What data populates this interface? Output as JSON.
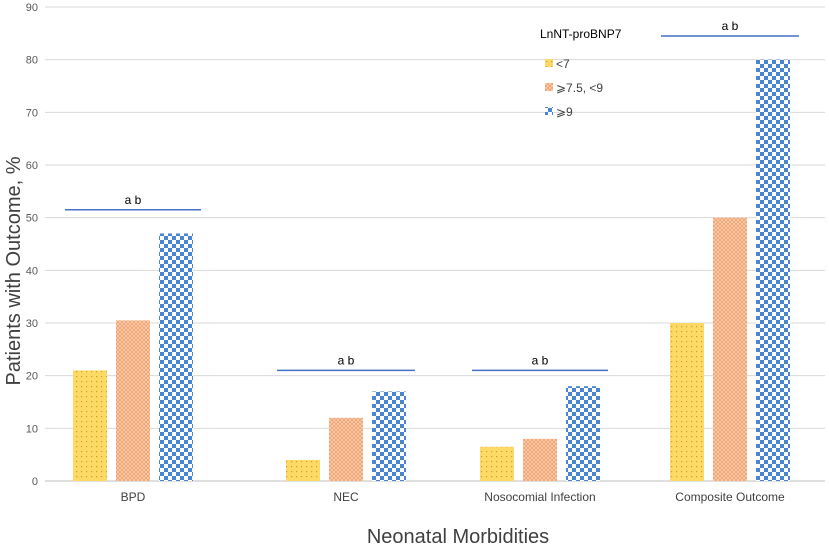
{
  "chart_data": {
    "type": "bar",
    "title": "",
    "xlabel": "Neonatal Morbidities",
    "ylabel": "Patients with Outcome, %",
    "ylim": [
      0,
      90
    ],
    "yticks": [
      0,
      10,
      20,
      30,
      40,
      50,
      60,
      70,
      80,
      90
    ],
    "grid": true,
    "legend_title": "LnNT-proBNP7",
    "legend_position": "top-right",
    "categories": [
      "BPD",
      "NEC",
      "Nosocomial Infection",
      "Composite Outcome"
    ],
    "series": [
      {
        "name": "<7",
        "values": [
          21,
          4,
          6.5,
          30
        ],
        "color": "#FFD966",
        "pattern": "dots"
      },
      {
        "name": "⩾7.5, <9",
        "values": [
          30.5,
          12,
          8,
          50
        ],
        "color": "#F4B183",
        "pattern": "crosshatch"
      },
      {
        "name": "⩾9",
        "values": [
          47,
          17,
          18,
          80
        ],
        "color": "#4A86D0",
        "pattern": "checker"
      }
    ],
    "significance": [
      {
        "category": "BPD",
        "y": 51.5,
        "label": "a b"
      },
      {
        "category": "NEC",
        "y": 21,
        "label": "a b"
      },
      {
        "category": "Nosocomial Infection",
        "y": 21,
        "label": "a b"
      },
      {
        "category": "Composite Outcome",
        "y": 84.5,
        "label": "a b"
      }
    ],
    "significance_color": "#4472C4"
  }
}
